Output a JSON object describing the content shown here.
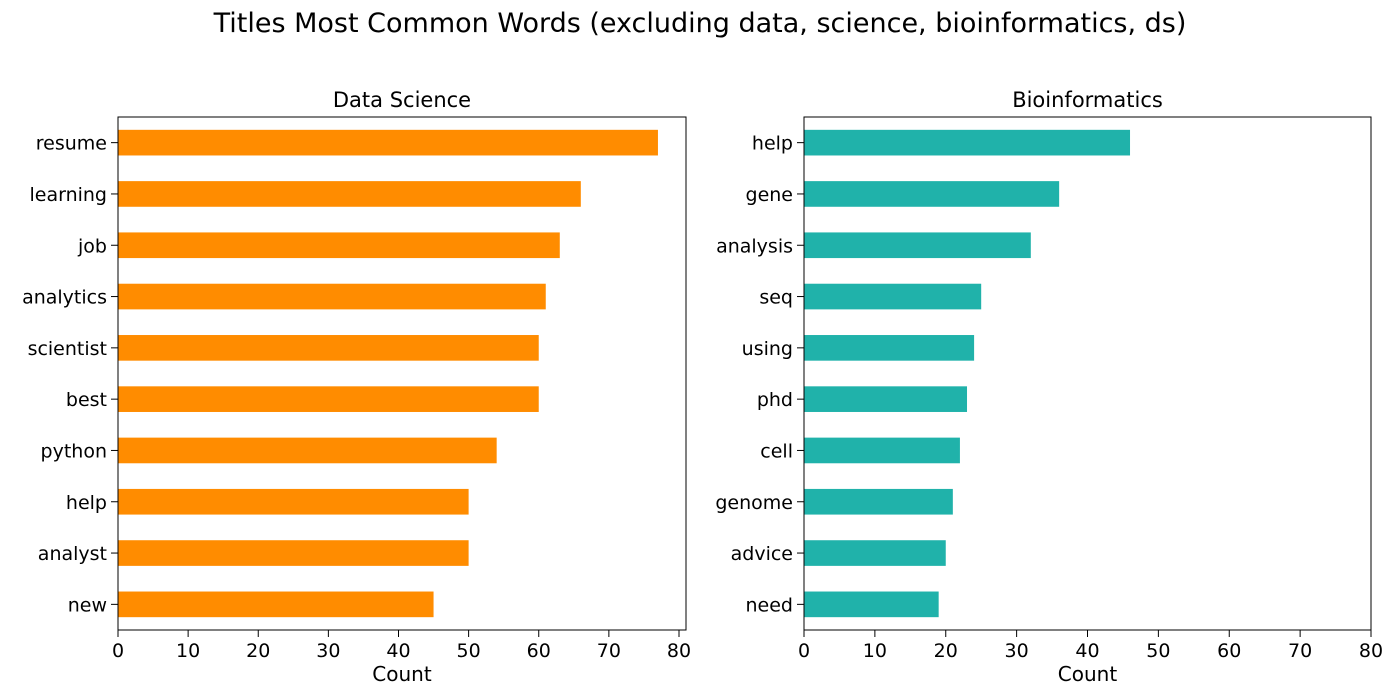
{
  "figure_title": "Titles Most Common Words (excluding data, science, bioinformatics, ds)",
  "chart_data": [
    {
      "type": "bar",
      "orientation": "horizontal",
      "title": "Data Science",
      "xlabel": "Count",
      "ylabel": "",
      "xlim": [
        0,
        81
      ],
      "xticks": [
        0,
        10,
        20,
        30,
        40,
        50,
        60,
        70,
        80
      ],
      "categories": [
        "resume",
        "learning",
        "job",
        "analytics",
        "scientist",
        "best",
        "python",
        "help",
        "analyst",
        "new"
      ],
      "values": [
        77,
        66,
        63,
        61,
        60,
        60,
        54,
        50,
        50,
        45
      ],
      "color": "#ff8c00",
      "grid": false
    },
    {
      "type": "bar",
      "orientation": "horizontal",
      "title": "Bioinformatics",
      "xlabel": "Count",
      "ylabel": "",
      "xlim": [
        0,
        80
      ],
      "xticks": [
        0,
        10,
        20,
        30,
        40,
        50,
        60,
        70,
        80
      ],
      "categories": [
        "help",
        "gene",
        "analysis",
        "seq",
        "using",
        "phd",
        "cell",
        "genome",
        "advice",
        "need"
      ],
      "values": [
        46,
        36,
        32,
        25,
        24,
        23,
        22,
        21,
        20,
        19
      ],
      "color": "#20b2aa",
      "grid": false
    }
  ]
}
